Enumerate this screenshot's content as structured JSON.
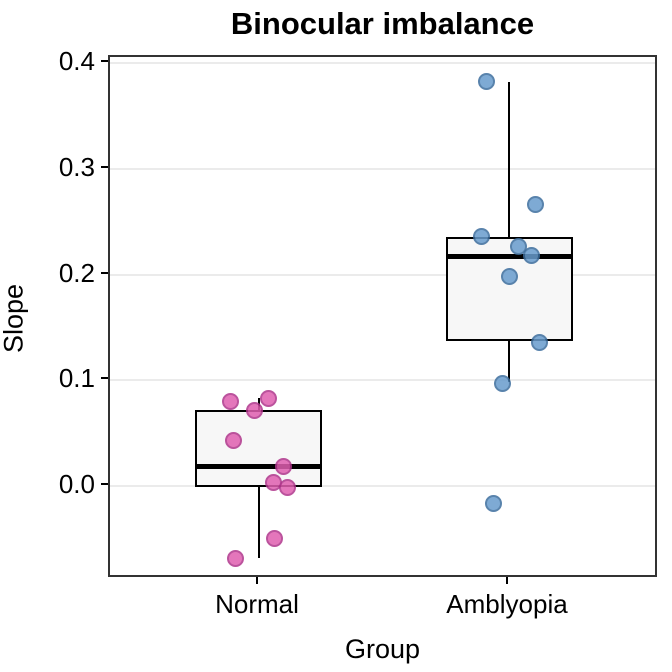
{
  "chart_data": {
    "type": "box",
    "title": "Binocular imbalance",
    "xlabel": "Group",
    "ylabel": "Slope",
    "ylim": [
      -0.088,
      0.406
    ],
    "yticks": [
      0.0,
      0.1,
      0.2,
      0.3,
      0.4
    ],
    "ytick_labels": [
      "0.0",
      "0.1",
      "0.2",
      "0.3",
      "0.4"
    ],
    "categories": [
      "Normal",
      "Amblyopia"
    ],
    "grid": "horizontal-major-only",
    "legend_position": "none",
    "panel_background": "#ffffff",
    "gridline_color": "#ebebeb",
    "panel_border_color": "#333333",
    "box_fill": "#f7f7f7",
    "box_stroke": "#000000",
    "series": [
      {
        "name": "Normal",
        "x_frac": 0.2714,
        "point_fill": "#e05fb0",
        "point_stroke": "#b0368c",
        "box": {
          "whisker_low": -0.068,
          "q1": -0.001,
          "median": 0.018,
          "q3": 0.072,
          "whisker_high": 0.083
        },
        "points": [
          {
            "value": 0.08,
            "jitter": -28
          },
          {
            "value": 0.083,
            "jitter": 10
          },
          {
            "value": 0.071,
            "jitter": -4
          },
          {
            "value": 0.043,
            "jitter": -25
          },
          {
            "value": 0.018,
            "jitter": 25
          },
          {
            "value": 0.003,
            "jitter": 15
          },
          {
            "value": -0.001,
            "jitter": 29
          },
          {
            "value": -0.05,
            "jitter": 16
          },
          {
            "value": -0.069,
            "jitter": -23
          }
        ]
      },
      {
        "name": "Amblyopia",
        "x_frac": 0.7268,
        "point_fill": "#689ccd",
        "point_stroke": "#3d6e9e",
        "box": {
          "whisker_low": 0.098,
          "q1": 0.137,
          "median": 0.217,
          "q3": 0.236,
          "whisker_high": 0.382
        },
        "points": [
          {
            "value": 0.383,
            "jitter": -23
          },
          {
            "value": 0.266,
            "jitter": 26
          },
          {
            "value": 0.236,
            "jitter": -28
          },
          {
            "value": 0.227,
            "jitter": 9
          },
          {
            "value": 0.218,
            "jitter": 22
          },
          {
            "value": 0.198,
            "jitter": 0
          },
          {
            "value": 0.136,
            "jitter": 30
          },
          {
            "value": 0.097,
            "jitter": -7
          },
          {
            "value": -0.017,
            "jitter": -16
          }
        ]
      }
    ]
  }
}
